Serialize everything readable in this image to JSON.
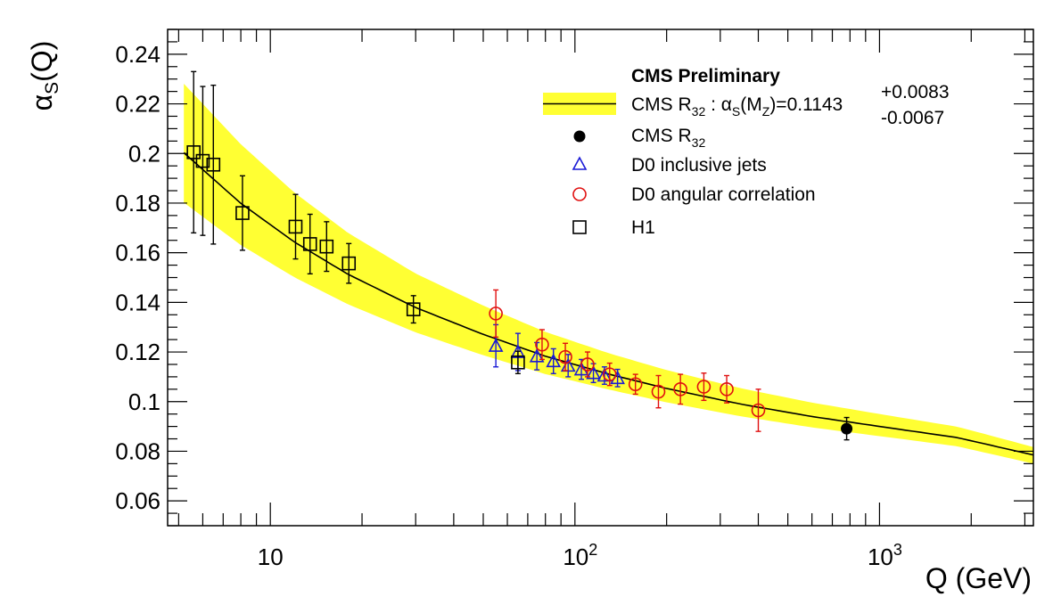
{
  "chart_data": {
    "type": "scatter",
    "title": "",
    "xlabel": "Q (GeV)",
    "ylabel": "αS(Q)",
    "xscale": "log",
    "xlim": [
      4.6,
      3200
    ],
    "ylim": [
      0.05,
      0.25
    ],
    "x_tick_labels": [
      "10",
      "10²",
      "10³"
    ],
    "x_tick_values": [
      10,
      100,
      1000
    ],
    "y_ticks": [
      0.06,
      0.08,
      0.1,
      0.12,
      0.14,
      0.16,
      0.18,
      0.2,
      0.22,
      0.24
    ],
    "y_tick_labels": [
      "0.06",
      "0.08",
      "0.1",
      "0.12",
      "0.14",
      "0.16",
      "0.18",
      "0.2",
      "0.22",
      "0.24"
    ],
    "legend_placement": "top-right",
    "legend_header": "CMS Preliminary",
    "fit": {
      "label_main": "CMS R",
      "label_sub": "32",
      "label_rest": " : α",
      "label_s": "S",
      "label_mz": "(M",
      "label_z": "Z",
      "label_value": ")=0.1143",
      "label_up": "+0.0083",
      "label_down": "-0.0067",
      "line_color": "#000000",
      "band_color": "#ffff33",
      "curve": [
        {
          "q": 5.2,
          "central": 0.2003,
          "low": 0.1802,
          "high": 0.2281
        },
        {
          "q": 8,
          "central": 0.1799,
          "low": 0.1631,
          "high": 0.2037
        },
        {
          "q": 12,
          "central": 0.1643,
          "low": 0.1501,
          "high": 0.1842
        },
        {
          "q": 18,
          "central": 0.1513,
          "low": 0.1392,
          "high": 0.168
        },
        {
          "q": 30,
          "central": 0.1379,
          "low": 0.1279,
          "high": 0.1516
        },
        {
          "q": 50,
          "central": 0.1271,
          "low": 0.1187,
          "high": 0.1387
        },
        {
          "q": 80,
          "central": 0.1183,
          "low": 0.1111,
          "high": 0.1281
        },
        {
          "q": 130,
          "central": 0.111,
          "low": 0.1048,
          "high": 0.1194
        },
        {
          "q": 200,
          "central": 0.1053,
          "low": 0.0997,
          "high": 0.1127
        },
        {
          "q": 350,
          "central": 0.099,
          "low": 0.0941,
          "high": 0.1054
        },
        {
          "q": 600,
          "central": 0.094,
          "low": 0.0896,
          "high": 0.0996
        },
        {
          "q": 1000,
          "central": 0.09,
          "low": 0.0861,
          "high": 0.095
        },
        {
          "q": 1800,
          "central": 0.0855,
          "low": 0.082,
          "high": 0.0899
        },
        {
          "q": 3200,
          "central": 0.0785,
          "low": 0.075,
          "high": 0.0817
        }
      ]
    },
    "series": [
      {
        "name": "CMS R32",
        "label_main": "CMS R",
        "label_sub": "32",
        "marker": "filled-circle",
        "color": "#000000",
        "points": [
          {
            "x": 780,
            "y": 0.0891,
            "err": 0.0045
          }
        ]
      },
      {
        "name": "D0 inclusive jets",
        "label_main": "D0 inclusive jets",
        "marker": "triangle",
        "color": "#1a1ad6",
        "points": [
          {
            "x": 55,
            "y": 0.1225,
            "err": 0.0085
          },
          {
            "x": 65,
            "y": 0.12,
            "err": 0.0075
          },
          {
            "x": 75,
            "y": 0.1183,
            "err": 0.0055
          },
          {
            "x": 85,
            "y": 0.1163,
            "err": 0.005
          },
          {
            "x": 95,
            "y": 0.1145,
            "err": 0.0045
          },
          {
            "x": 105,
            "y": 0.113,
            "err": 0.004
          },
          {
            "x": 115,
            "y": 0.1115,
            "err": 0.0038
          },
          {
            "x": 125,
            "y": 0.1105,
            "err": 0.0035
          },
          {
            "x": 138,
            "y": 0.1095,
            "err": 0.0035
          }
        ]
      },
      {
        "name": "D0 angular correlation",
        "label_main": "D0 angular correlation",
        "marker": "open-circle",
        "color": "#e01010",
        "points": [
          {
            "x": 55,
            "y": 0.1355,
            "err": 0.0095
          },
          {
            "x": 78,
            "y": 0.123,
            "err": 0.006
          },
          {
            "x": 93,
            "y": 0.118,
            "err": 0.0055
          },
          {
            "x": 110,
            "y": 0.115,
            "err": 0.005
          },
          {
            "x": 130,
            "y": 0.111,
            "err": 0.0045
          },
          {
            "x": 158,
            "y": 0.107,
            "err": 0.004
          },
          {
            "x": 188,
            "y": 0.104,
            "err": 0.0065
          },
          {
            "x": 222,
            "y": 0.105,
            "err": 0.006
          },
          {
            "x": 265,
            "y": 0.106,
            "err": 0.0055
          },
          {
            "x": 315,
            "y": 0.105,
            "err": 0.0055
          },
          {
            "x": 400,
            "y": 0.0965,
            "err": 0.0085
          }
        ]
      },
      {
        "name": "H1",
        "label_main": "H1",
        "marker": "open-square",
        "color": "#000000",
        "points": [
          {
            "x": 5.6,
            "y": 0.2005,
            "err": 0.0325
          },
          {
            "x": 6.0,
            "y": 0.197,
            "err": 0.03
          },
          {
            "x": 6.5,
            "y": 0.1955,
            "err": 0.032
          },
          {
            "x": 8.1,
            "y": 0.176,
            "err": 0.015
          },
          {
            "x": 12.1,
            "y": 0.1705,
            "err": 0.013
          },
          {
            "x": 13.5,
            "y": 0.1635,
            "err": 0.012
          },
          {
            "x": 15.3,
            "y": 0.1625,
            "err": 0.01
          },
          {
            "x": 18.1,
            "y": 0.1557,
            "err": 0.008
          },
          {
            "x": 29.5,
            "y": 0.1372,
            "err": 0.0055
          },
          {
            "x": 65,
            "y": 0.1158,
            "err": 0.0045
          }
        ]
      }
    ]
  }
}
